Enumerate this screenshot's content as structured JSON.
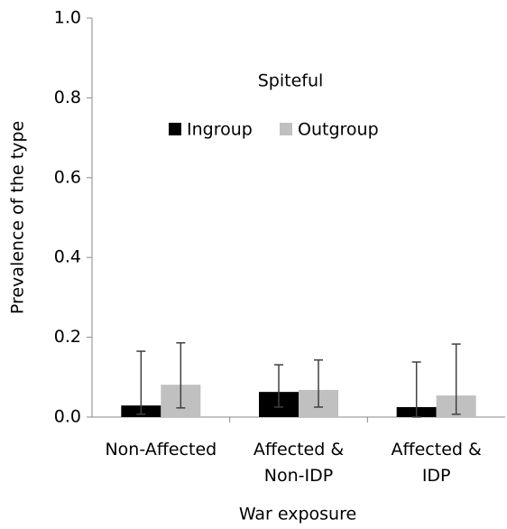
{
  "chart_data": {
    "type": "bar",
    "title": "Spiteful",
    "x_label": "War exposure",
    "y_label": "Prevalence of the type",
    "categories": [
      [
        "Non-Affected"
      ],
      [
        "Affected &",
        "Non-IDP"
      ],
      [
        "Affected &",
        "IDP"
      ]
    ],
    "series": [
      {
        "name": "Ingroup",
        "color": "#000000",
        "values": [
          0.029,
          0.063,
          0.025
        ],
        "error_low": [
          0.007,
          0.025,
          0.0
        ],
        "error_high": [
          0.165,
          0.131,
          0.138
        ]
      },
      {
        "name": "Outgroup",
        "color": "#c0c0c0",
        "values": [
          0.081,
          0.068,
          0.054
        ],
        "error_low": [
          0.023,
          0.025,
          0.007
        ],
        "error_high": [
          0.186,
          0.143,
          0.183
        ]
      }
    ],
    "ylim": [
      0,
      1
    ],
    "yticks": [
      {
        "value": 0,
        "label": "0.0"
      },
      0.2,
      0.4,
      0.6,
      0.8,
      {
        "value": 1,
        "label": "1.0"
      }
    ],
    "error_color": "#404040",
    "grid": false
  }
}
